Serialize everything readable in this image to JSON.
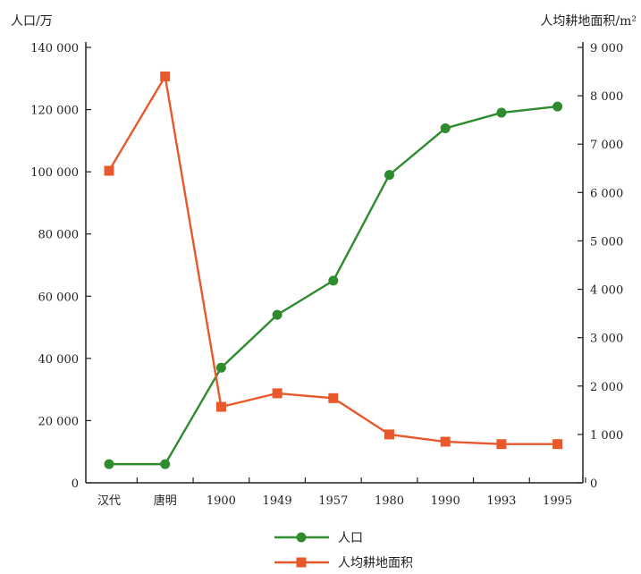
{
  "chart_data": {
    "type": "line",
    "categories": [
      "汉代",
      "唐明",
      "1900",
      "1949",
      "1957",
      "1980",
      "1990",
      "1993",
      "1995"
    ],
    "left_axis": {
      "label": "人口/万",
      "ylim": [
        0,
        140000
      ],
      "ticks": [
        0,
        20000,
        40000,
        60000,
        80000,
        100000,
        120000,
        140000
      ],
      "tick_labels": [
        "0",
        "20 000",
        "40 000",
        "60 000",
        "80 000",
        "100 000",
        "120 000",
        "140 000"
      ]
    },
    "right_axis": {
      "label": "人均耕地面积/m²",
      "ylim": [
        0,
        9000
      ],
      "ticks": [
        0,
        1000,
        2000,
        3000,
        4000,
        5000,
        6000,
        7000,
        8000,
        9000
      ],
      "tick_labels": [
        "0",
        "1 000",
        "2 000",
        "3 000",
        "4 000",
        "5 000",
        "6 000",
        "7 000",
        "8 000",
        "9 000"
      ]
    },
    "series": [
      {
        "name": "人口",
        "axis": "left",
        "color": "#2e8b2e",
        "values": [
          6000,
          6000,
          37000,
          54000,
          65000,
          99000,
          114000,
          119000,
          121000
        ]
      },
      {
        "name": "人均耕地面积",
        "axis": "right",
        "color": "#e8582a",
        "values": [
          6450,
          8400,
          1570,
          1850,
          1750,
          1000,
          850,
          800,
          800
        ]
      }
    ],
    "grid": false,
    "legend_position": "bottom-center"
  }
}
